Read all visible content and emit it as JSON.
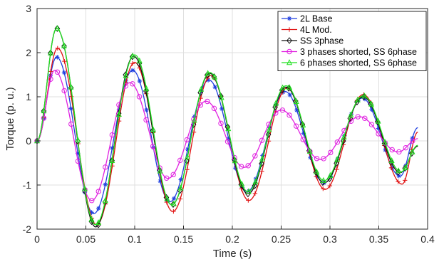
{
  "chart_data": {
    "type": "line",
    "xlabel": "Time (s)",
    "ylabel": "Torque (p. u.)",
    "xlim": [
      0,
      0.4
    ],
    "ylim": [
      -2,
      3
    ],
    "xticks": [
      0,
      0.05,
      0.1,
      0.15,
      0.2,
      0.25,
      0.3,
      0.35,
      0.4
    ],
    "xtick_labels": [
      "0",
      "0.05",
      "0.1",
      "0.15",
      "0.2",
      "0.25",
      "0.3",
      "0.35",
      "0.4"
    ],
    "yticks": [
      -2,
      -1,
      0,
      1,
      2,
      3
    ],
    "ytick_labels": [
      "-2",
      "-1",
      "0",
      "1",
      "2",
      "3"
    ],
    "grid": true,
    "legend_position": "top-right",
    "series": [
      {
        "name": "2L Base",
        "color": "#1f3fe0",
        "marker": "asterisk",
        "x": [
          0,
          0.02,
          0.058,
          0.098,
          0.136,
          0.176,
          0.215,
          0.254,
          0.294,
          0.333,
          0.372,
          0.39
        ],
        "y": [
          0,
          1.9,
          -1.65,
          1.6,
          -1.38,
          1.38,
          -1.15,
          1.12,
          -0.95,
          0.97,
          -0.8,
          0.3
        ]
      },
      {
        "name": "4L Mod.",
        "color": "#e01010",
        "marker": "plus",
        "x": [
          0,
          0.021,
          0.061,
          0.1,
          0.139,
          0.178,
          0.217,
          0.256,
          0.295,
          0.334,
          0.374,
          0.39
        ],
        "y": [
          0,
          2.1,
          -1.9,
          1.78,
          -1.6,
          1.48,
          -1.35,
          1.2,
          -1.1,
          1.05,
          -0.98,
          0.2
        ]
      },
      {
        "name": "SS 3phase",
        "color": "#111111",
        "marker": "diamond",
        "x": [
          0,
          0.02,
          0.06,
          0.099,
          0.138,
          0.177,
          0.216,
          0.255,
          0.294,
          0.334,
          0.372,
          0.39
        ],
        "y": [
          0,
          2.55,
          -1.95,
          1.92,
          -1.45,
          1.53,
          -1.2,
          1.22,
          -0.95,
          1.0,
          -0.72,
          -0.12
        ]
      },
      {
        "name": "3 phases shorted, SS 6phase",
        "color": "#e020e0",
        "marker": "circle",
        "x": [
          0,
          0.018,
          0.056,
          0.095,
          0.134,
          0.173,
          0.212,
          0.25,
          0.29,
          0.33,
          0.37,
          0.39
        ],
        "y": [
          0,
          1.6,
          -1.35,
          1.32,
          -0.85,
          0.9,
          -0.6,
          0.7,
          -0.42,
          0.55,
          -0.25,
          0.05
        ]
      },
      {
        "name": "6 phases shorted, SS 6phase",
        "color": "#20e020",
        "marker": "triangle",
        "x": [
          0,
          0.02,
          0.06,
          0.1,
          0.138,
          0.177,
          0.216,
          0.255,
          0.294,
          0.334,
          0.373,
          0.39
        ],
        "y": [
          0,
          2.55,
          -1.9,
          1.95,
          -1.45,
          1.55,
          -1.15,
          1.25,
          -0.9,
          1.02,
          -0.7,
          -0.1
        ]
      }
    ]
  }
}
